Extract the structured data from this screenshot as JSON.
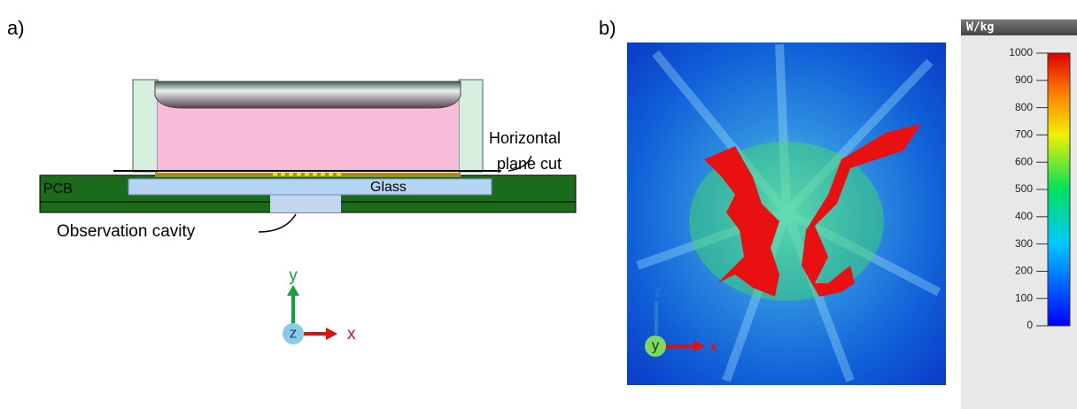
{
  "panel_a": {
    "label": "a)",
    "cut_label": [
      "Horizontal",
      "plane cut"
    ],
    "pcb": "PCB",
    "glass": "Glass",
    "cavity": "Observation cavity",
    "axes": {
      "up": "y",
      "out": "z",
      "right": "x"
    }
  },
  "panel_b": {
    "label": "b)",
    "axes": {
      "up": "z",
      "out": "y",
      "right": "x"
    },
    "colorbar": {
      "unit": "W/kg",
      "lim": [
        0,
        1000
      ],
      "ticks": [
        0,
        100,
        200,
        300,
        400,
        500,
        600,
        700,
        800,
        900,
        1000
      ]
    }
  }
}
